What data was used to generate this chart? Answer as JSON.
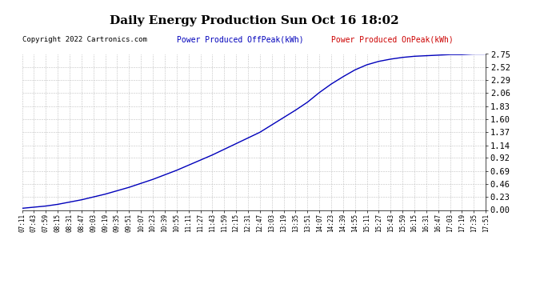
{
  "title": "Daily Energy Production Sun Oct 16 18:02",
  "copyright": "Copyright 2022 Cartronics.com",
  "legend_offpeak": "Power Produced OffPeak(kWh)",
  "legend_onpeak": "Power Produced OnPeak(kWh)",
  "line_color_offpeak": "#0000bb",
  "line_color_onpeak": "#cc0000",
  "background_color": "#ffffff",
  "grid_color": "#bbbbbb",
  "yticks": [
    0.0,
    0.23,
    0.46,
    0.69,
    0.92,
    1.14,
    1.37,
    1.6,
    1.83,
    2.06,
    2.29,
    2.52,
    2.75
  ],
  "xtick_labels": [
    "07:11",
    "07:43",
    "07:59",
    "08:15",
    "08:31",
    "08:47",
    "09:03",
    "09:19",
    "09:35",
    "09:51",
    "10:07",
    "10:23",
    "10:39",
    "10:55",
    "11:11",
    "11:27",
    "11:43",
    "11:59",
    "12:15",
    "12:31",
    "12:47",
    "13:03",
    "13:19",
    "13:35",
    "13:51",
    "14:07",
    "14:23",
    "14:39",
    "14:55",
    "15:11",
    "15:27",
    "15:43",
    "15:59",
    "16:15",
    "16:31",
    "16:47",
    "17:03",
    "17:19",
    "17:35",
    "17:51"
  ],
  "ymax": 2.75,
  "ymin": 0.0,
  "curve_y": [
    0.03,
    0.05,
    0.07,
    0.1,
    0.14,
    0.18,
    0.23,
    0.28,
    0.34,
    0.4,
    0.47,
    0.54,
    0.62,
    0.7,
    0.79,
    0.88,
    0.97,
    1.07,
    1.17,
    1.27,
    1.37,
    1.5,
    1.63,
    1.76,
    1.9,
    2.07,
    2.22,
    2.35,
    2.47,
    2.56,
    2.62,
    2.66,
    2.69,
    2.71,
    2.72,
    2.73,
    2.74,
    2.74,
    2.75,
    2.75
  ]
}
